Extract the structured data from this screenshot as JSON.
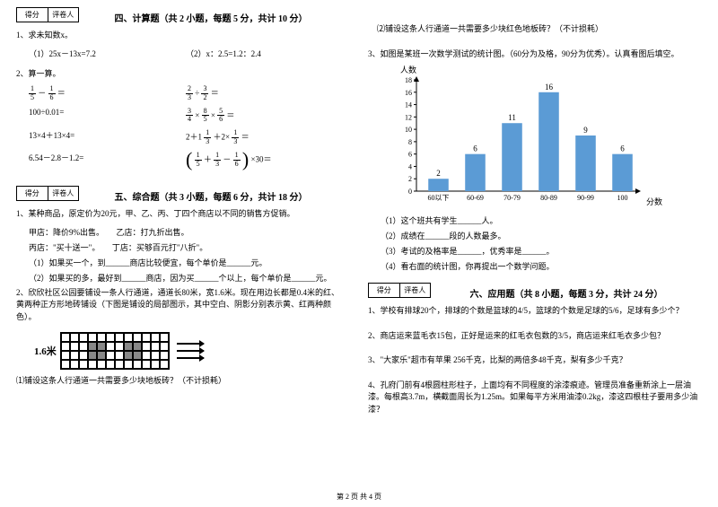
{
  "scorebox": {
    "left": "得分",
    "right": "评卷人"
  },
  "left": {
    "section4_title": "四、计算题（共 2 小题，每题 5 分，共计 10 分）",
    "q1_stem": "1、求未知数x。",
    "q1a": "（1）25x－13x=7.2",
    "q1b": "（2）x：2.5=1.2：2.4",
    "q2_stem": "2、算一算。",
    "row1a_l1": "1",
    "row1a_l2": "5",
    "row1a_m": "－",
    "row1a_r1": "1",
    "row1a_r2": "6",
    "row1a_eq": "＝",
    "row1b_l1": "2",
    "row1b_l2": "3",
    "row1b_m": "÷",
    "row1b_r1": "3",
    "row1b_r2": "2",
    "row1b_eq": "＝",
    "row2a": "100÷0.01=",
    "row2b_a1": "3",
    "row2b_a2": "4",
    "row2b_m1": "×",
    "row2b_b1": "8",
    "row2b_b2": "5",
    "row2b_m2": "×",
    "row2b_c1": "5",
    "row2b_c2": "6",
    "row2b_eq": "＝",
    "row3a": "13×4＋13×4=",
    "row3b_pre": "2＋1",
    "row3b_f1n": "1",
    "row3b_f1d": "3",
    "row3b_mid": "＋2×",
    "row3b_f2n": "1",
    "row3b_f2d": "3",
    "row3b_eq": "＝",
    "row4a": "6.54－2.8－1.2=",
    "row4b_f1n": "1",
    "row4b_f1d": "5",
    "row4b_m1": "＋",
    "row4b_f2n": "1",
    "row4b_f2d": "3",
    "row4b_m2": "－",
    "row4b_f3n": "1",
    "row4b_f3d": "6",
    "row4b_post": "×30＝",
    "section5_title": "五、综合题（共 3 小题，每题 6 分，共计 18 分）",
    "s5q1": "1、某种商品，原定价为20元，甲、乙、丙、丁四个商店以不同的销售方促销。",
    "s5q1_line2": "甲店：降价9%出售。　　乙店：打九折出售。",
    "s5q1_line3": "丙店：\"买十送一\"。　　丁店：买够百元打\"八折\"。",
    "s5q1_sub1": "（1）如果买一个，到______商店比较便宜，每个单价是______元。",
    "s5q1_sub2": "（2）如果买的多，最好到______商店，因为买______个以上，每个单价是______元。",
    "s5q2": "2、欣欣社区公园要铺设一条人行通道，通道长80米，宽1.6米。现在用边长都是0.4米的红、黄两种正方形地砖铺设（下图是铺设的局部图示，其中空白、阴影分别表示黄、红两种颜色）。",
    "grid_label": "1.6米",
    "s5q2_sub1": "⑴铺设这条人行通道一共需要多少块地板砖？（不计损耗）"
  },
  "right": {
    "s5q2_sub2": "⑵铺设这条人行通道一共需要多少块红色地板砖？（不计损耗）",
    "s5q3": "3、如图是某班一次数学测试的统计图。（60分为及格，90分为优秀）。认真看图后填空。",
    "chart": {
      "ylabel": "人数",
      "xlabel": "分数",
      "ymax": 18,
      "ytick_step": 2,
      "categories": [
        "60以下",
        "60-69",
        "70-79",
        "80-89",
        "90-99",
        "100"
      ],
      "values": [
        2,
        6,
        11,
        16,
        9,
        6
      ],
      "bar_color": "#5b9bd5",
      "background_color": "#ffffff"
    },
    "s5q3_sub1": "（1）这个班共有学生______人。",
    "s5q3_sub2": "（2）成绩在______段的人数最多。",
    "s5q3_sub3": "（3）考试的及格率是______，优秀率是______。",
    "s5q3_sub4": "（4）看右面的统计图，你再提出一个数学问题。",
    "section6_title": "六、应用题（共 8 小题，每题 3 分，共计 24 分）",
    "s6q1": "1、学校有排球20个，排球的个数是篮球的4/5，篮球的个数是足球的5/6，足球有多少个？",
    "s6q2": "2、商店运来蓝毛衣15包，正好是运来的红毛衣包数的3/5，商店运来红毛衣多少包？",
    "s6q3": "3、\"大家乐\"超市有苹果 256千克，比梨的两倍多48千克，梨有多少千克？",
    "s6q4": "4、孔府门前有4根圆柱形柱子，上面均有不同程度的涂漆痕迹。管理员准备重新涂上一层油漆。每根高3.7m，横截面周长为1.25m。如果每平方米用油漆0.2kg，漆这四根柱子要用多少油漆？"
  },
  "footer": "第 2 页 共 4 页"
}
